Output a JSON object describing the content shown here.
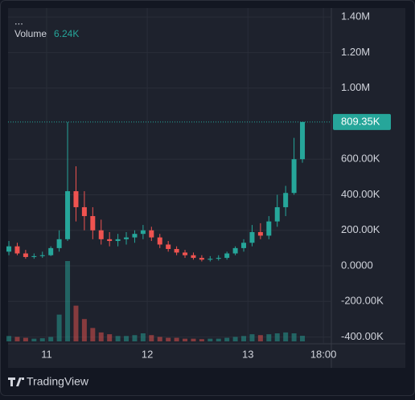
{
  "chart_data": {
    "type": "candlestick",
    "legend_title": "...",
    "x": [
      -9,
      -7,
      -5,
      -3,
      -1,
      1,
      3,
      5,
      7,
      9,
      11,
      13,
      15,
      17,
      19,
      21,
      23,
      25,
      27,
      29,
      31,
      33,
      35,
      37,
      39,
      41,
      43,
      45,
      47,
      49,
      51,
      53,
      55,
      57,
      59,
      61
    ],
    "open": [
      80000,
      110000,
      70000,
      50000,
      55000,
      60000,
      100000,
      150000,
      420000,
      330000,
      280000,
      200000,
      150000,
      140000,
      150000,
      160000,
      180000,
      200000,
      160000,
      120000,
      95000,
      75000,
      60000,
      45000,
      35000,
      40000,
      45000,
      70000,
      100000,
      130000,
      190000,
      170000,
      250000,
      330000,
      410000,
      600000
    ],
    "high": [
      140000,
      130000,
      90000,
      70000,
      80000,
      110000,
      200000,
      809000,
      560000,
      420000,
      330000,
      260000,
      190000,
      180000,
      190000,
      200000,
      230000,
      220000,
      180000,
      140000,
      110000,
      90000,
      75000,
      60000,
      55000,
      60000,
      80000,
      110000,
      150000,
      230000,
      240000,
      280000,
      400000,
      450000,
      720000,
      809350
    ],
    "low": [
      60000,
      60000,
      40000,
      40000,
      45000,
      55000,
      80000,
      140000,
      250000,
      200000,
      150000,
      120000,
      110000,
      110000,
      120000,
      130000,
      150000,
      140000,
      100000,
      80000,
      60000,
      45000,
      35000,
      25000,
      25000,
      30000,
      35000,
      60000,
      80000,
      110000,
      150000,
      150000,
      220000,
      280000,
      400000,
      580000
    ],
    "close": [
      110000,
      70000,
      50000,
      55000,
      60000,
      100000,
      150000,
      420000,
      330000,
      280000,
      200000,
      150000,
      140000,
      150000,
      160000,
      180000,
      200000,
      160000,
      120000,
      95000,
      75000,
      60000,
      45000,
      35000,
      40000,
      45000,
      70000,
      100000,
      130000,
      190000,
      170000,
      250000,
      330000,
      410000,
      600000,
      809350
    ],
    "last_price_label": "809.35K",
    "up_color": "#26a69a",
    "down_color": "#ef5350",
    "volume": {
      "name": "Volume",
      "last_label": "6.24K",
      "values": [
        6000,
        5000,
        4000,
        3000,
        3500,
        5000,
        30000,
        90000,
        40000,
        25000,
        15000,
        10000,
        8000,
        6000,
        6000,
        7000,
        9000,
        7000,
        5000,
        4000,
        4000,
        3000,
        3000,
        2500,
        3000,
        3000,
        4000,
        5000,
        6000,
        8000,
        7000,
        8000,
        9000,
        10000,
        9000,
        6240
      ]
    },
    "xlim": [
      -9.2,
      67.9
    ],
    "xticks": [
      {
        "value": 0,
        "label": "11"
      },
      {
        "value": 24,
        "label": "12"
      },
      {
        "value": 48,
        "label": "13"
      },
      {
        "value": 66,
        "label": "18:00"
      }
    ],
    "ylim": [
      -438000,
      1450000
    ],
    "yticks": [
      {
        "value": -400000,
        "label": "-400.00K"
      },
      {
        "value": -200000,
        "label": "-200.00K"
      },
      {
        "value": 0,
        "label": "0.0000"
      },
      {
        "value": 200000,
        "label": "200.00K"
      },
      {
        "value": 400000,
        "label": "400.00K"
      },
      {
        "value": 600000,
        "label": "600.00K"
      },
      {
        "value": 1000000,
        "label": "1.00M"
      },
      {
        "value": 1200000,
        "label": "1.20M"
      },
      {
        "value": 1400000,
        "label": "1.40M"
      }
    ],
    "grid": true,
    "footer": "TradingView"
  }
}
